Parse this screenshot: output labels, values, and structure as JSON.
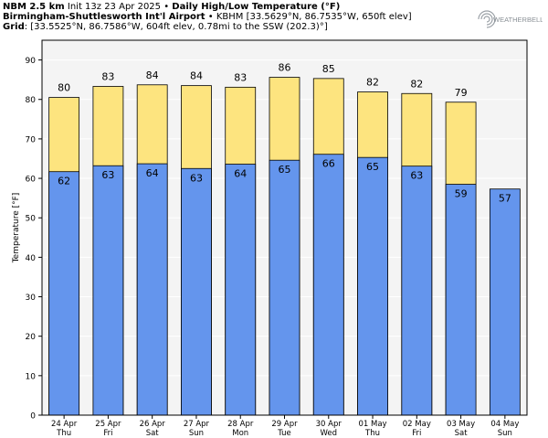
{
  "header": {
    "line1_bold_a": "NBM 2.5 km",
    "line1_a": " Init 13z 23 Apr 2025 • ",
    "line1_bold_b": "Daily High/Low Temperature (°F)",
    "line2_bold": "Birmingham-Shuttlesworth Int'l Airport",
    "line2": " • KBHM [33.5629°N, 86.7535°W, 650ft elev]",
    "line3_bold": "Grid",
    "line3": ": [33.5525°N, 86.7586°W, 604ft elev, 0.78mi to the SSW (202.3)°]"
  },
  "logo": {
    "text": "WEATHERBELL"
  },
  "colors": {
    "high": "#fde47f",
    "low": "#6495ed",
    "plot_bg": "#f4f4f4",
    "grid": "#ffffff"
  },
  "chart_data": {
    "type": "bar",
    "ylabel": "Temperature [°F]",
    "ylim": [
      0,
      95
    ],
    "yticks": [
      0,
      10,
      20,
      30,
      40,
      50,
      60,
      70,
      80,
      90
    ],
    "categories": [
      {
        "date": "24 Apr",
        "dow": "Thu"
      },
      {
        "date": "25 Apr",
        "dow": "Fri"
      },
      {
        "date": "26 Apr",
        "dow": "Sat"
      },
      {
        "date": "27 Apr",
        "dow": "Sun"
      },
      {
        "date": "28 Apr",
        "dow": "Mon"
      },
      {
        "date": "29 Apr",
        "dow": "Tue"
      },
      {
        "date": "30 Apr",
        "dow": "Wed"
      },
      {
        "date": "01 May",
        "dow": "Thu"
      },
      {
        "date": "02 May",
        "dow": "Fri"
      },
      {
        "date": "03 May",
        "dow": "Sat"
      },
      {
        "date": "04 May",
        "dow": "Sun"
      }
    ],
    "series": [
      {
        "name": "High",
        "values": [
          80.5,
          83.3,
          83.7,
          83.5,
          83.1,
          85.6,
          85.3,
          81.9,
          81.5,
          79.3,
          null
        ],
        "labels": [
          "80",
          "83",
          "84",
          "84",
          "83",
          "86",
          "85",
          "82",
          "82",
          "79",
          ""
        ]
      },
      {
        "name": "Low",
        "values": [
          61.7,
          63.2,
          63.7,
          62.5,
          63.6,
          64.6,
          66.1,
          65.3,
          63.1,
          58.5,
          57.3
        ],
        "labels": [
          "62",
          "63",
          "64",
          "63",
          "64",
          "65",
          "66",
          "65",
          "63",
          "59",
          "57"
        ]
      }
    ],
    "grid": true
  }
}
